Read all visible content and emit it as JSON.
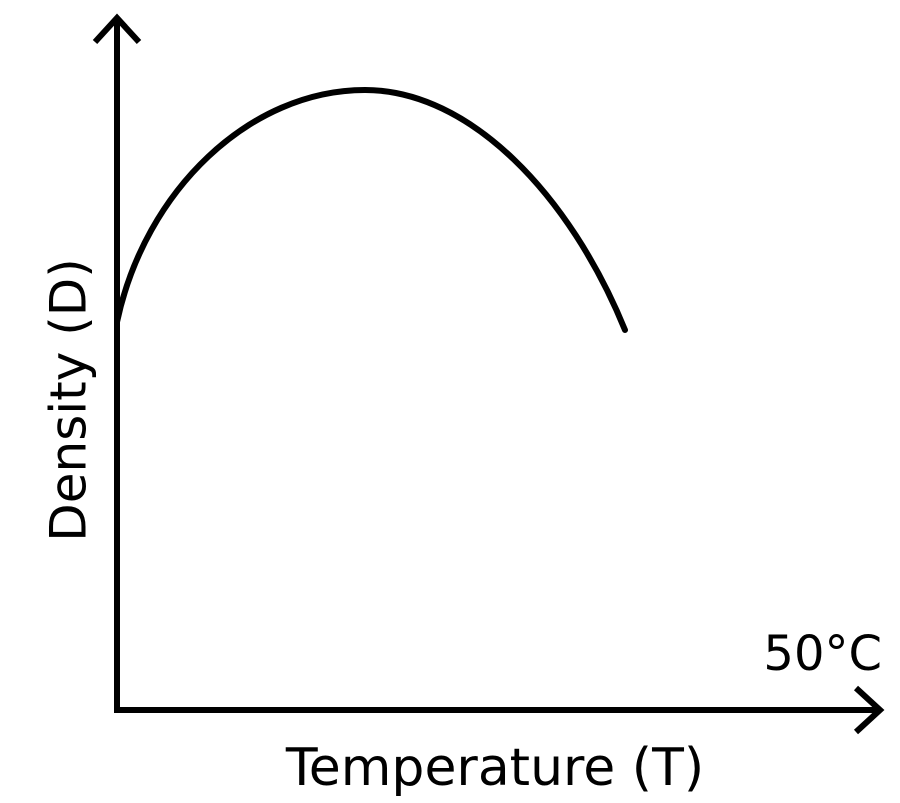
{
  "axes": {
    "y_label": "Density (D)",
    "x_label": "Temperature (T)"
  },
  "annotation": "50°C"
}
